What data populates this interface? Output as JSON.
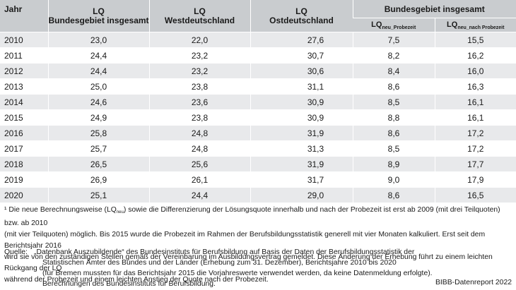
{
  "table": {
    "headers": {
      "year": "Jahr",
      "col1_a": "LQ",
      "col1_b": "Bundesgebiet insgesamt",
      "col2_a": "LQ",
      "col2_b": "Westdeutschland",
      "col3_a": "LQ",
      "col3_b": "Ostdeutschland",
      "group": "Bundesgebiet insgesamt",
      "sub1_main": "LQ",
      "sub1_sub": "neu_Probezeit",
      "sub2_main": "LQ",
      "sub2_sub": "neu_nach Probezeit"
    },
    "rows": [
      {
        "year": "2010",
        "bund": "23,0",
        "west": "22,0",
        "ost": "27,6",
        "probe": "7,5",
        "nach": "15,5"
      },
      {
        "year": "2011",
        "bund": "24,4",
        "west": "23,2",
        "ost": "30,7",
        "probe": "8,2",
        "nach": "16,2"
      },
      {
        "year": "2012",
        "bund": "24,4",
        "west": "23,2",
        "ost": "30,6",
        "probe": "8,4",
        "nach": "16,0"
      },
      {
        "year": "2013",
        "bund": "25,0",
        "west": "23,8",
        "ost": "31,1",
        "probe": "8,6",
        "nach": "16,3"
      },
      {
        "year": "2014",
        "bund": "24,6",
        "west": "23,6",
        "ost": "30,9",
        "probe": "8,5",
        "nach": "16,1"
      },
      {
        "year": "2015",
        "bund": "24,9",
        "west": "23,8",
        "ost": "30,9",
        "probe": "8,8",
        "nach": "16,1"
      },
      {
        "year": "2016",
        "bund": "25,8",
        "west": "24,8",
        "ost": "31,9",
        "probe": "8,6",
        "nach": "17,2"
      },
      {
        "year": "2017",
        "bund": "25,7",
        "west": "24,8",
        "ost": "31,3",
        "probe": "8,5",
        "nach": "17,2"
      },
      {
        "year": "2018",
        "bund": "26,5",
        "west": "25,6",
        "ost": "31,9",
        "probe": "8,9",
        "nach": "17,7"
      },
      {
        "year": "2019",
        "bund": "26,9",
        "west": "26,1",
        "ost": "31,7",
        "probe": "9,0",
        "nach": "17,9"
      },
      {
        "year": "2020",
        "bund": "25,1",
        "west": "24,4",
        "ost": "29,0",
        "probe": "8,6",
        "nach": "16,5"
      }
    ]
  },
  "footnote": {
    "marker": "¹",
    "line1_a": " Die neue Berechnungsweise (LQ",
    "line1_sub": "neu",
    "line1_b": ") sowie die Differenzierung der Lösungsquote innerhalb und nach der Probezeit ist erst ab 2009 (mit drei Teilquoten) bzw. ab 2010",
    "line2": "(mit vier Teilquoten) möglich. Bis 2015 wurde die Probezeit im Rahmen der Berufsbildungsstatistik generell mit vier Monaten kalkuliert. Erst seit dem Berichtsjahr 2016",
    "line3": "wird sie von den zuständigen Stellen gemäß der Vereinbarung im Ausbildungsvertrag gemeldet. Diese Änderung der Erhebung führt zu einem leichten Rückgang der LQ",
    "line4": "während der Probezeit und einem leichten Anstieg der Quote nach der Probezeit."
  },
  "source": {
    "label": "Quelle:",
    "line1": "„Datenbank Auszubildende“ des Bundesinstituts für Berufsbildung auf Basis der Daten der Berufsbildungsstatistik der",
    "line2": "Statistischen Ämter des Bundes und der Länder (Erhebung zum 31. Dezember), Berichtsjahre 2010 bis 2020",
    "line3": "(für Bremen mussten für das Berichtsjahr 2015 die Vorjahreswerte verwendet werden, da keine Datenmeldung erfolgte).",
    "line4": "Berechnungen des Bundesinstituts für Berufsbildung."
  },
  "credit": "BIBB-Datenreport 2022"
}
